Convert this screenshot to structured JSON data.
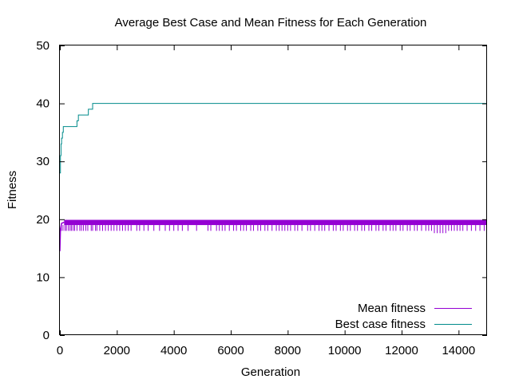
{
  "chart_data": {
    "type": "line",
    "title": "Average Best Case and Mean Fitness for Each Generation",
    "xlabel": "Generation",
    "ylabel": "Fitness",
    "xlim": [
      0,
      15000
    ],
    "ylim": [
      0,
      50
    ],
    "xticks": [
      0,
      2000,
      4000,
      6000,
      8000,
      10000,
      12000,
      14000
    ],
    "yticks": [
      0,
      10,
      20,
      30,
      40,
      50
    ],
    "grid": false,
    "legend_position": "bottom-right",
    "series": [
      {
        "name": "Mean fitness",
        "color": "#9400d3",
        "band_top": 19.9,
        "band_bottom": 19.0,
        "start_points": [
          [
            0,
            14.5
          ],
          [
            20,
            18.3
          ],
          [
            60,
            19.3
          ],
          [
            150,
            19.5
          ]
        ],
        "dip_value": 18.0,
        "deep_dip_value": 17.6,
        "dip_generations": [
          50,
          110,
          180,
          230,
          300,
          360,
          410,
          470,
          520,
          600,
          700,
          760,
          830,
          910,
          980,
          1100,
          1150,
          1250,
          1300,
          1400,
          1500,
          1600,
          1700,
          1800,
          1900,
          2000,
          2100,
          2200,
          2300,
          2400,
          2500,
          2700,
          2800,
          2950,
          3100,
          3300,
          3500,
          3700,
          3850,
          4000,
          4150,
          4300,
          4500,
          4800,
          5200,
          5300,
          5500,
          5600,
          5700,
          5800,
          5950,
          6100,
          6200,
          6350,
          6450,
          6550,
          6700,
          6800,
          6950,
          7050,
          7200,
          7300,
          7450,
          7600,
          7700,
          7800,
          7900,
          8000,
          8100,
          8250,
          8350,
          8500,
          8700,
          8800,
          8950,
          9100,
          9200,
          9300,
          9450,
          9600,
          9700,
          9850,
          9950,
          10100,
          10200,
          10350,
          10450,
          10600,
          10700,
          10850,
          10950,
          11100,
          11200,
          11350,
          11450,
          11600,
          11700,
          11800,
          11950,
          12050,
          12200,
          12300,
          12450,
          12550,
          12700,
          12850,
          12950,
          13050,
          13150,
          13250,
          13350,
          13450,
          13550,
          13650,
          13750,
          13850,
          13950,
          14050,
          14150,
          14300,
          14450,
          14600,
          14750,
          14900
        ],
        "deep_dip_range": [
          13100,
          13600
        ]
      },
      {
        "name": "Best case fitness",
        "color": "#008b8b",
        "points": [
          [
            0,
            28
          ],
          [
            20,
            31
          ],
          [
            40,
            33
          ],
          [
            60,
            34
          ],
          [
            90,
            35
          ],
          [
            120,
            36
          ],
          [
            600,
            37
          ],
          [
            650,
            38
          ],
          [
            1000,
            39
          ],
          [
            1150,
            40
          ],
          [
            15000,
            40
          ]
        ]
      }
    ]
  }
}
